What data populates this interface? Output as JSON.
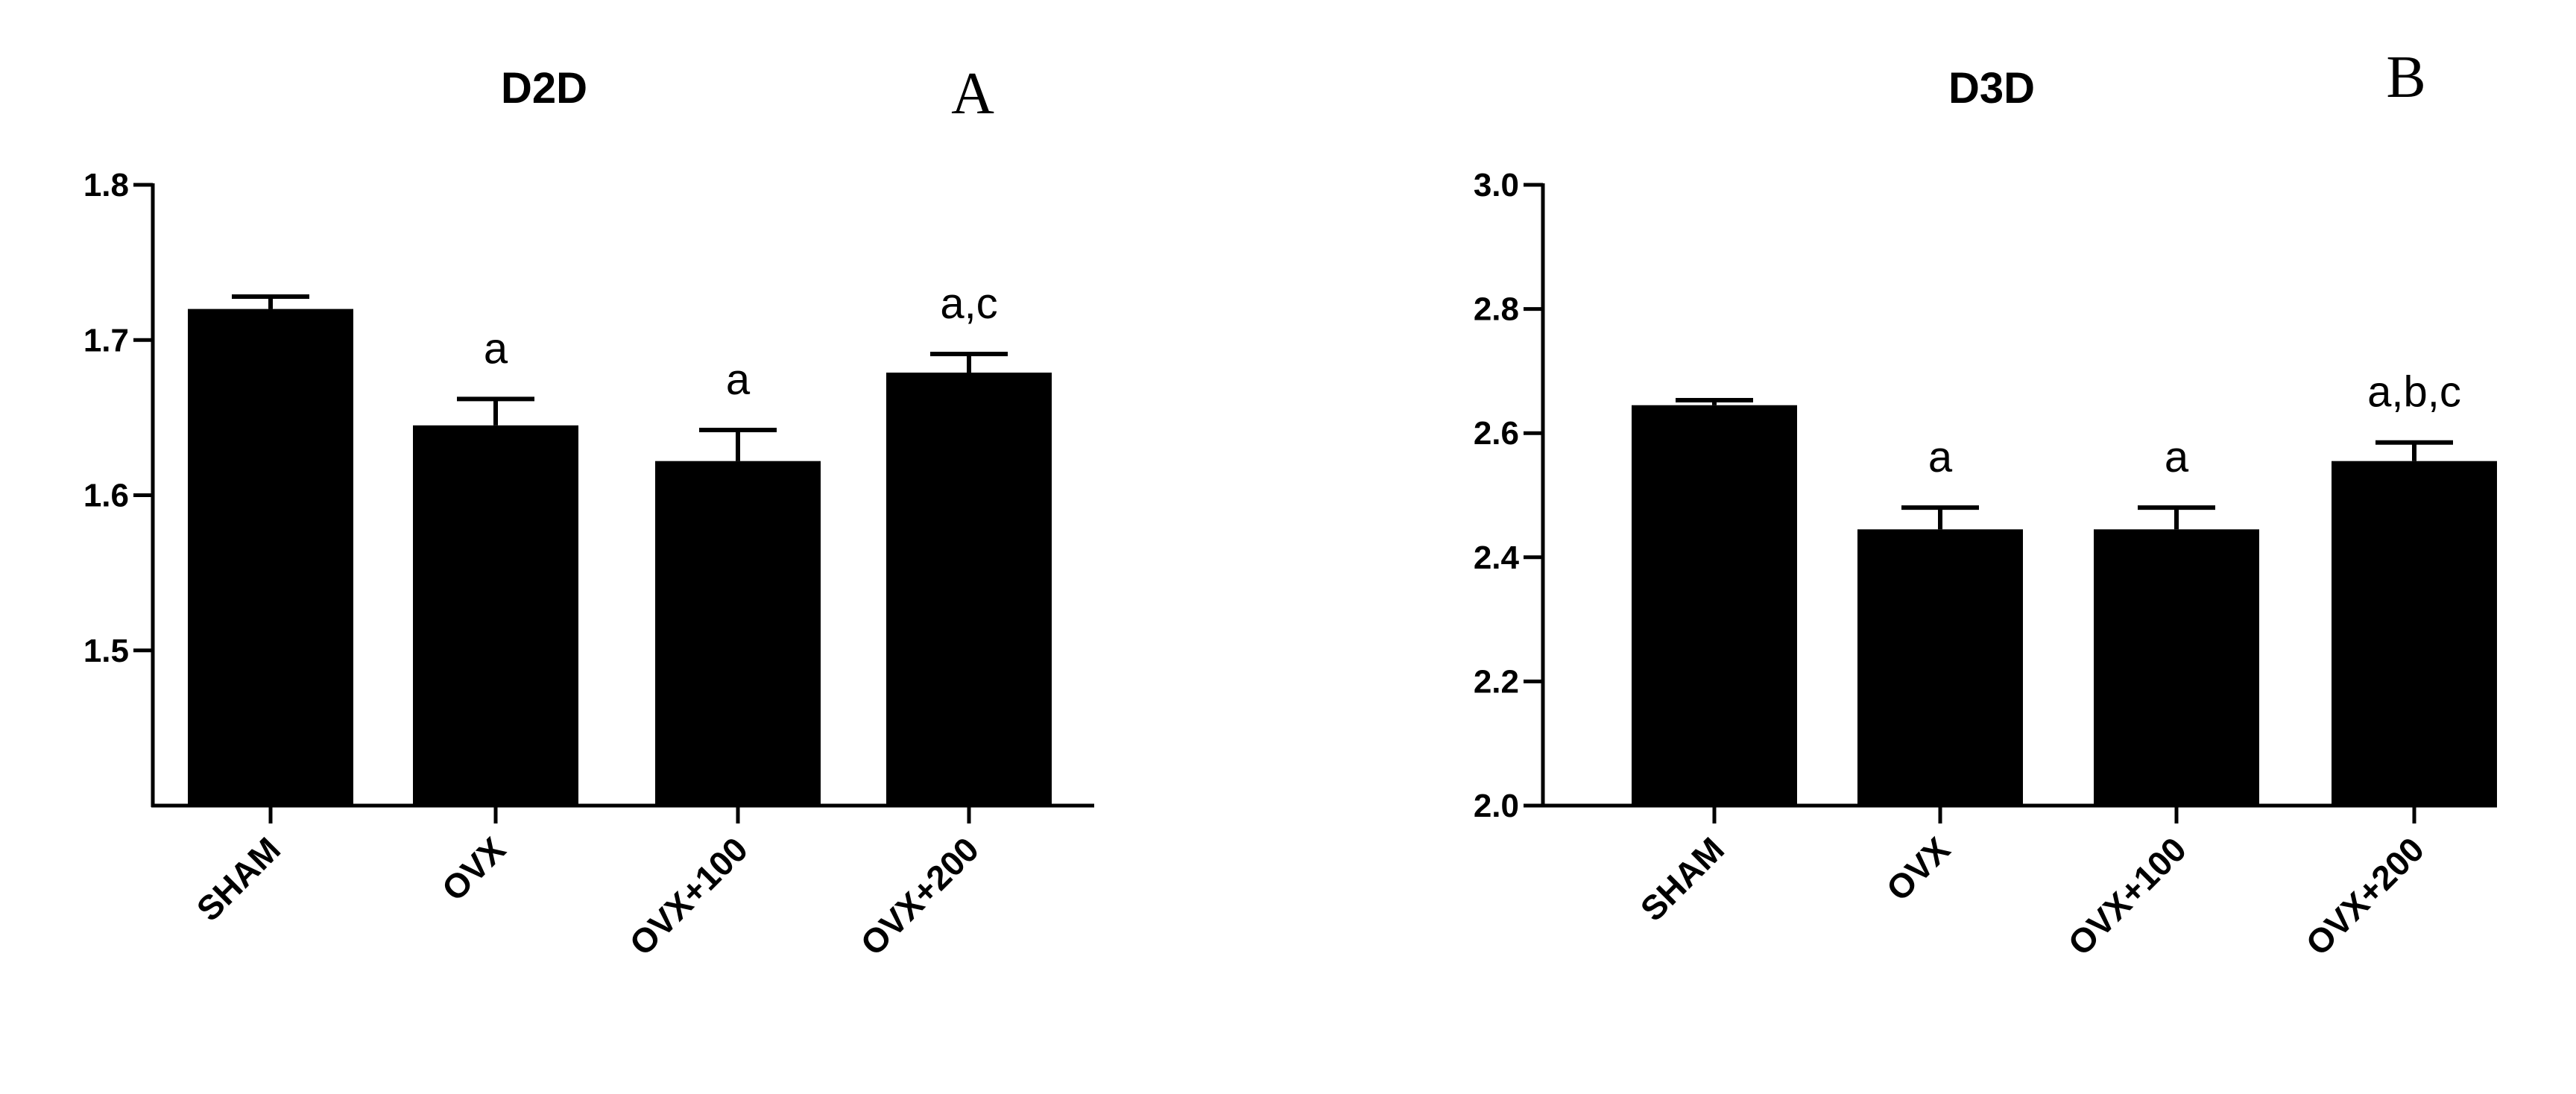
{
  "chart_data": [
    {
      "type": "bar",
      "title": "D2D",
      "panel_label": "A",
      "categories": [
        "SHAM",
        "OVX",
        "OVX+100",
        "OVX+200"
      ],
      "values": [
        1.72,
        1.645,
        1.622,
        1.679
      ],
      "errors": [
        0.008,
        0.017,
        0.02,
        0.012
      ],
      "annotations": [
        "",
        "a",
        "a",
        "a,c"
      ],
      "ylim": [
        1.4,
        1.8
      ],
      "yticks": [
        1.5,
        1.6,
        1.7,
        1.8
      ],
      "ytick_labels": [
        "1.5",
        "1.6",
        "1.7",
        "1.8"
      ],
      "xlabel": "",
      "ylabel": "",
      "bar_color": "#000000",
      "grid": false
    },
    {
      "type": "bar",
      "title": "D3D",
      "panel_label": "B",
      "categories": [
        "SHAM",
        "OVX",
        "OVX+100",
        "OVX+200"
      ],
      "values": [
        2.645,
        2.445,
        2.445,
        2.555
      ],
      "errors": [
        0.008,
        0.035,
        0.035,
        0.03
      ],
      "annotations": [
        "",
        "a",
        "a",
        "a,b,c"
      ],
      "ylim": [
        2.0,
        3.0
      ],
      "yticks": [
        2.0,
        2.2,
        2.4,
        2.6,
        2.8,
        3.0
      ],
      "ytick_labels": [
        "2.0",
        "2.2",
        "2.4",
        "2.6",
        "2.8",
        "3.0"
      ],
      "xlabel": "",
      "ylabel": "",
      "bar_color": "#000000",
      "grid": false
    }
  ]
}
